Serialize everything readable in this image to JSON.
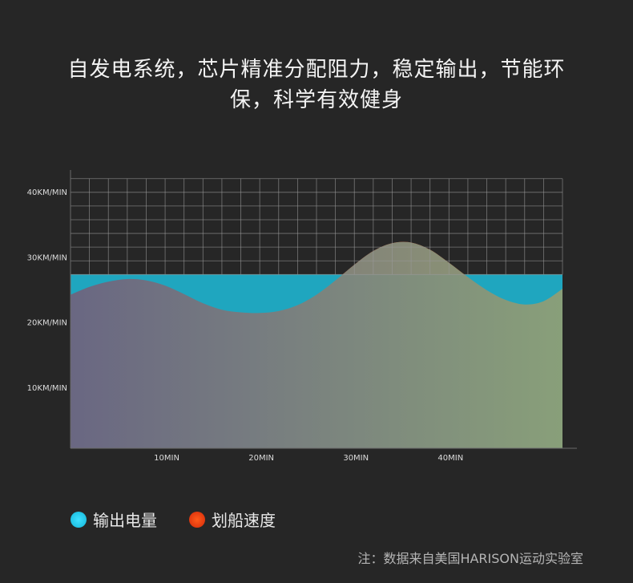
{
  "headline": {
    "line1": "自发电系统，芯片精准分配阻力，稳定输出，节能环",
    "line2": "保，科学有效健身"
  },
  "chart_data": {
    "type": "area",
    "title": "",
    "y_ticks": [
      {
        "value": 10,
        "label": "10KM/MIN"
      },
      {
        "value": 20,
        "label": "20KM/MIN"
      },
      {
        "value": 30,
        "label": "30KM/MIN"
      },
      {
        "value": 40,
        "label": "40KM/MIN"
      }
    ],
    "x_ticks": [
      {
        "value": 10,
        "label": "10MIN"
      },
      {
        "value": 20,
        "label": "20MIN"
      },
      {
        "value": 30,
        "label": "30MIN"
      },
      {
        "value": 40,
        "label": "40MIN"
      }
    ],
    "xlim": [
      0,
      52
    ],
    "ylim": [
      0,
      42
    ],
    "grid_band": [
      27.3,
      42
    ],
    "series": [
      {
        "name": "输出电量",
        "color": "#1ecbea",
        "constant": 27.3
      },
      {
        "name": "划船速度",
        "color": "#f0400e",
        "x": [
          0,
          2,
          4,
          6,
          8,
          10,
          12,
          14,
          16,
          18,
          20,
          22,
          24,
          26,
          28,
          30,
          32,
          34,
          36,
          38,
          40,
          42,
          44,
          46,
          48,
          50,
          52
        ],
        "y": [
          24.2,
          25.4,
          26.2,
          26.6,
          26.4,
          25.6,
          24.3,
          22.9,
          21.9,
          21.5,
          21.4,
          21.7,
          22.6,
          24.2,
          26.4,
          28.8,
          30.9,
          32.1,
          32.2,
          31.1,
          29.1,
          26.9,
          24.9,
          23.4,
          22.7,
          23.2,
          25.1
        ]
      }
    ]
  },
  "legend": [
    {
      "label": "输出电量",
      "color": "#1ecbea"
    },
    {
      "label": "划船速度",
      "color": "#f0400e"
    }
  ],
  "source_note": "注：数据来自美国HARISON运动实验室"
}
